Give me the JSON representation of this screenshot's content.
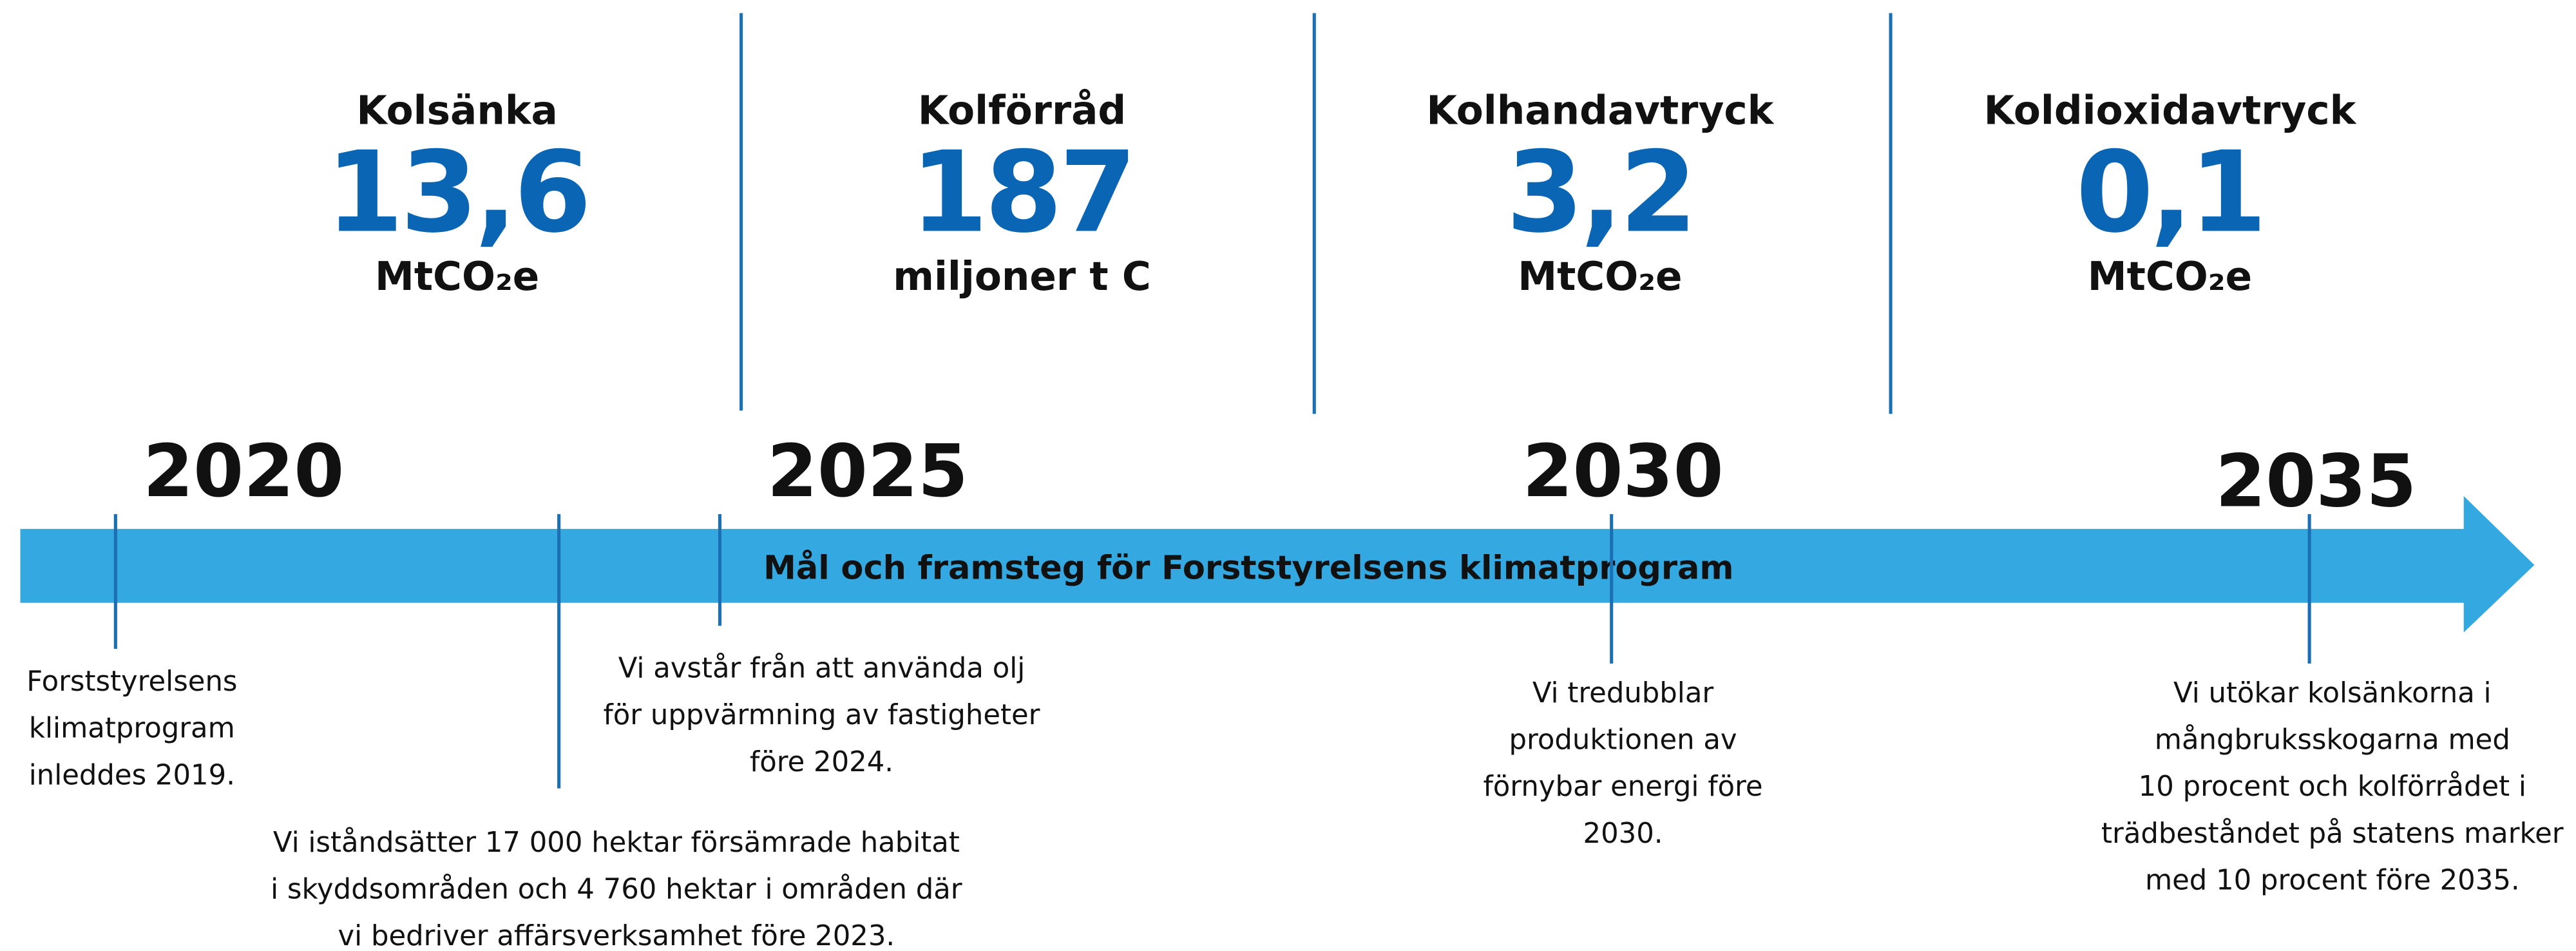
{
  "metrics": [
    {
      "label": "Kolsänka",
      "value": "13,6",
      "unit": "MtCO₂e"
    },
    {
      "label": "Kolförråd",
      "value": "187",
      "unit": "miljoner t C"
    },
    {
      "label": "Kolhandavtryck",
      "value": "3,2",
      "unit": "MtCO₂e"
    },
    {
      "label": "Koldioxidavtryck",
      "value": "0,1",
      "unit": "MtCO₂e"
    }
  ],
  "years": [
    "2020",
    "2025",
    "2030",
    "2035"
  ],
  "arrow_title": "Mål och framsteg för Forststyrelsens klimatprogram",
  "milestones": [
    {
      "lines": [
        "Forststyrelsens",
        "klimatprogram",
        "inleddes 2019."
      ]
    },
    {
      "lines": [
        "Vi iståndsätter 17 000 hektar försämrade habitat",
        "i skyddsområden och 4 760 hektar i områden där",
        "vi bedriver affärsverksamhet före 2023."
      ]
    },
    {
      "lines": [
        "Vi avstår från att använda olj",
        "för uppvärmning av fastigheter",
        "före 2024."
      ]
    },
    {
      "lines": [
        "Vi tredubblar",
        "produktionen av",
        "förnybar energi före",
        "2030."
      ]
    },
    {
      "lines": [
        "Vi utökar kolsänkorna i",
        "mångbruksskogarna med",
        "10 procent och kolförrådet i",
        "trädbeståndet på statens marker",
        "med 10 procent före 2035."
      ]
    }
  ]
}
